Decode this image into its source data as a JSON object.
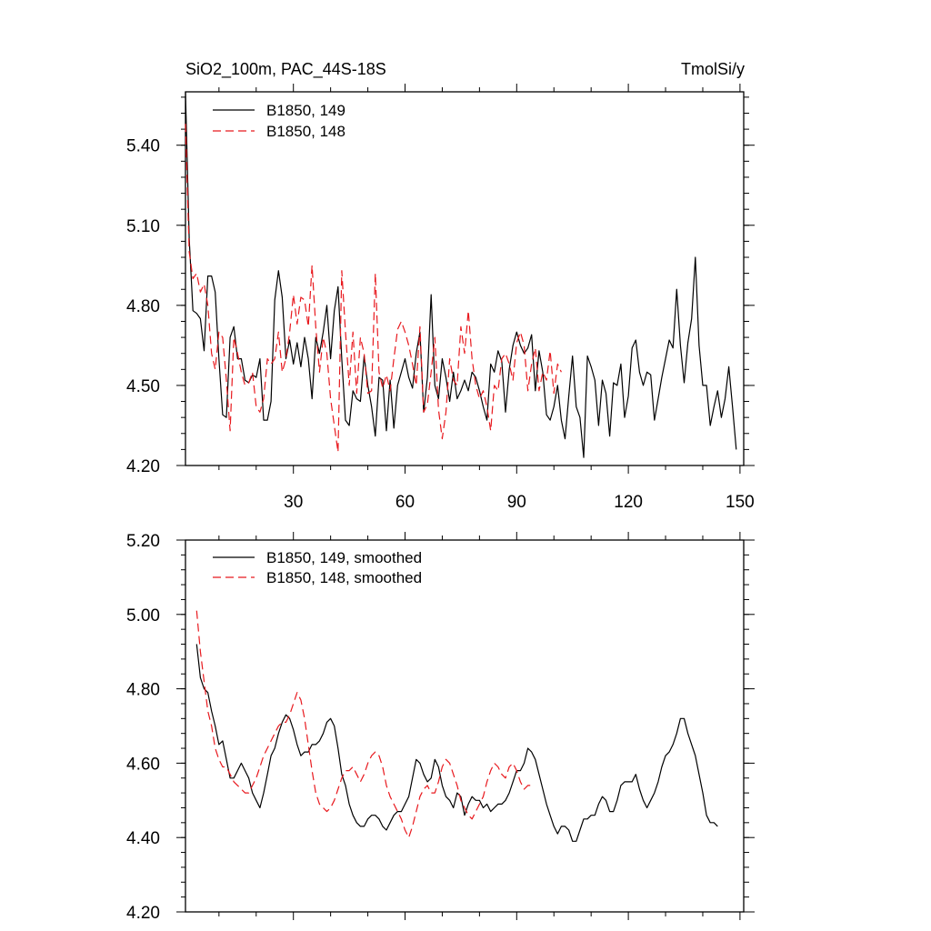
{
  "chart_data": [
    {
      "type": "line",
      "title": "SiO2_100m, PAC_44S-18S",
      "units_label": "TmolSi/y",
      "xlim": [
        1,
        151
      ],
      "ylim": [
        4.2,
        5.6
      ],
      "xticks": [
        30,
        60,
        90,
        120,
        150
      ],
      "xtick_labels": [
        "30",
        "60",
        "90",
        "120",
        "150"
      ],
      "yticks": [
        4.2,
        4.5,
        4.8,
        5.1,
        5.4
      ],
      "ytick_labels": [
        "4.20",
        "4.50",
        "4.80",
        "5.10",
        "5.40"
      ],
      "legend_position": "top-left",
      "series": [
        {
          "name": "B1850, 149",
          "color": "#000000",
          "dash": "solid",
          "x_start": 1,
          "values": [
            5.63,
            5.05,
            4.78,
            4.77,
            4.75,
            4.63,
            4.91,
            4.91,
            4.85,
            4.6,
            4.39,
            4.38,
            4.68,
            4.72,
            4.6,
            4.6,
            4.52,
            4.51,
            4.54,
            4.53,
            4.6,
            4.37,
            4.37,
            4.44,
            4.82,
            4.93,
            4.83,
            4.6,
            4.67,
            4.58,
            4.66,
            4.57,
            4.68,
            4.6,
            4.45,
            4.68,
            4.62,
            4.7,
            4.8,
            4.6,
            4.78,
            4.87,
            4.6,
            4.37,
            4.35,
            4.48,
            4.45,
            4.44,
            4.61,
            4.5,
            4.42,
            4.31,
            4.53,
            4.52,
            4.33,
            4.52,
            4.34,
            4.5,
            4.55,
            4.6,
            4.53,
            4.49,
            4.62,
            4.7,
            4.4,
            4.53,
            4.84,
            4.5,
            4.45,
            4.6,
            4.53,
            4.44,
            4.55,
            4.45,
            4.48,
            4.52,
            4.48,
            4.55,
            4.53,
            4.48,
            4.42,
            4.37,
            4.58,
            4.55,
            4.63,
            4.59,
            4.4,
            4.56,
            4.65,
            4.7,
            4.65,
            4.62,
            4.64,
            4.69,
            4.48,
            4.63,
            4.55,
            4.39,
            4.37,
            4.42,
            4.5,
            4.37,
            4.3,
            4.46,
            4.61,
            4.42,
            4.38,
            4.23,
            4.61,
            4.57,
            4.52,
            4.35,
            4.52,
            4.47,
            4.31,
            4.51,
            4.5,
            4.58,
            4.38,
            4.46,
            4.64,
            4.67,
            4.55,
            4.5,
            4.55,
            4.54,
            4.37,
            4.45,
            4.53,
            4.6,
            4.67,
            4.64,
            4.86,
            4.65,
            4.51,
            4.66,
            4.75,
            4.98,
            4.65,
            4.5,
            4.5,
            4.35,
            4.42,
            4.48,
            4.38,
            4.45,
            4.57,
            4.42,
            4.26
          ]
        },
        {
          "name": "B1850, 148",
          "color": "#e8191e",
          "dash": "dashed",
          "x_start": 1,
          "values": [
            5.48,
            5.0,
            4.9,
            4.92,
            4.85,
            4.88,
            4.8,
            4.62,
            4.56,
            4.7,
            4.68,
            4.52,
            4.33,
            4.68,
            4.62,
            4.55,
            4.5,
            4.51,
            4.55,
            4.42,
            4.4,
            4.45,
            4.6,
            4.58,
            4.6,
            4.7,
            4.55,
            4.6,
            4.7,
            4.84,
            4.73,
            4.83,
            4.82,
            4.72,
            4.95,
            4.72,
            4.55,
            4.68,
            4.62,
            4.45,
            4.35,
            4.25,
            4.93,
            4.7,
            4.5,
            4.7,
            4.47,
            4.68,
            4.62,
            4.47,
            4.48,
            4.92,
            4.55,
            4.49,
            4.54,
            4.48,
            4.6,
            4.71,
            4.74,
            4.7,
            4.65,
            4.58,
            4.5,
            4.72,
            4.4,
            4.43,
            4.55,
            4.68,
            4.41,
            4.3,
            4.4,
            4.6,
            4.52,
            4.5,
            4.72,
            4.62,
            4.78,
            4.6,
            4.5,
            4.45,
            4.48,
            4.42,
            4.33,
            4.5,
            4.48,
            4.6,
            4.62,
            4.58,
            4.52,
            4.66,
            4.7,
            4.65,
            4.48,
            4.58,
            4.64,
            4.48,
            4.55,
            4.52,
            4.63,
            4.47,
            4.58,
            4.55
          ]
        }
      ]
    },
    {
      "type": "line",
      "xlim": [
        1,
        151
      ],
      "ylim": [
        4.2,
        5.2
      ],
      "xticks": [
        30,
        60,
        90,
        120,
        150
      ],
      "yticks": [
        4.2,
        4.4,
        4.6,
        4.8,
        5.0,
        5.2
      ],
      "ytick_labels": [
        "4.20",
        "4.40",
        "4.60",
        "4.80",
        "5.00",
        "5.20"
      ],
      "legend_position": "top-left",
      "series": [
        {
          "name": "B1850, 149, smoothed",
          "color": "#000000",
          "dash": "solid",
          "x_start": 4,
          "values": [
            4.92,
            4.83,
            4.8,
            4.79,
            4.74,
            4.7,
            4.65,
            4.66,
            4.61,
            4.56,
            4.56,
            4.58,
            4.6,
            4.58,
            4.56,
            4.52,
            4.5,
            4.48,
            4.52,
            4.57,
            4.62,
            4.64,
            4.68,
            4.71,
            4.73,
            4.72,
            4.69,
            4.65,
            4.62,
            4.63,
            4.63,
            4.65,
            4.65,
            4.66,
            4.68,
            4.71,
            4.72,
            4.7,
            4.64,
            4.57,
            4.54,
            4.49,
            4.46,
            4.44,
            4.43,
            4.43,
            4.45,
            4.46,
            4.46,
            4.45,
            4.43,
            4.42,
            4.44,
            4.46,
            4.47,
            4.47,
            4.49,
            4.51,
            4.56,
            4.61,
            4.6,
            4.57,
            4.55,
            4.56,
            4.61,
            4.59,
            4.54,
            4.51,
            4.5,
            4.48,
            4.52,
            4.51,
            4.46,
            4.49,
            4.51,
            4.5,
            4.5,
            4.48,
            4.49,
            4.47,
            4.48,
            4.49,
            4.49,
            4.5,
            4.52,
            4.55,
            4.58,
            4.58,
            4.6,
            4.64,
            4.63,
            4.61,
            4.57,
            4.53,
            4.49,
            4.46,
            4.43,
            4.41,
            4.43,
            4.43,
            4.42,
            4.39,
            4.39,
            4.42,
            4.45,
            4.45,
            4.46,
            4.46,
            4.49,
            4.51,
            4.5,
            4.47,
            4.47,
            4.5,
            4.54,
            4.55,
            4.55,
            4.55,
            4.57,
            4.53,
            4.5,
            4.48,
            4.5,
            4.52,
            4.55,
            4.59,
            4.62,
            4.63,
            4.65,
            4.68,
            4.72,
            4.72,
            4.68,
            4.65,
            4.62,
            4.57,
            4.52,
            4.46,
            4.44,
            4.44,
            4.43
          ]
        },
        {
          "name": "B1850, 148, smoothed",
          "color": "#e8191e",
          "dash": "dashed",
          "x_start": 4,
          "values": [
            5.01,
            4.9,
            4.82,
            4.74,
            4.7,
            4.64,
            4.61,
            4.59,
            4.59,
            4.57,
            4.55,
            4.54,
            4.53,
            4.52,
            4.52,
            4.54,
            4.56,
            4.59,
            4.62,
            4.64,
            4.66,
            4.68,
            4.7,
            4.71,
            4.71,
            4.73,
            4.76,
            4.79,
            4.77,
            4.72,
            4.65,
            4.58,
            4.52,
            4.49,
            4.48,
            4.47,
            4.48,
            4.5,
            4.53,
            4.56,
            4.58,
            4.58,
            4.59,
            4.57,
            4.55,
            4.57,
            4.6,
            4.62,
            4.63,
            4.62,
            4.59,
            4.54,
            4.51,
            4.49,
            4.47,
            4.45,
            4.42,
            4.4,
            4.43,
            4.47,
            4.51,
            4.53,
            4.54,
            4.52,
            4.52,
            4.55,
            4.59,
            4.61,
            4.6,
            4.57,
            4.54,
            4.5,
            4.48,
            4.46,
            4.45,
            4.47,
            4.49,
            4.51,
            4.55,
            4.58,
            4.6,
            4.59,
            4.57,
            4.56,
            4.59,
            4.6,
            4.58,
            4.55,
            4.53,
            4.54,
            4.54
          ]
        }
      ]
    }
  ]
}
